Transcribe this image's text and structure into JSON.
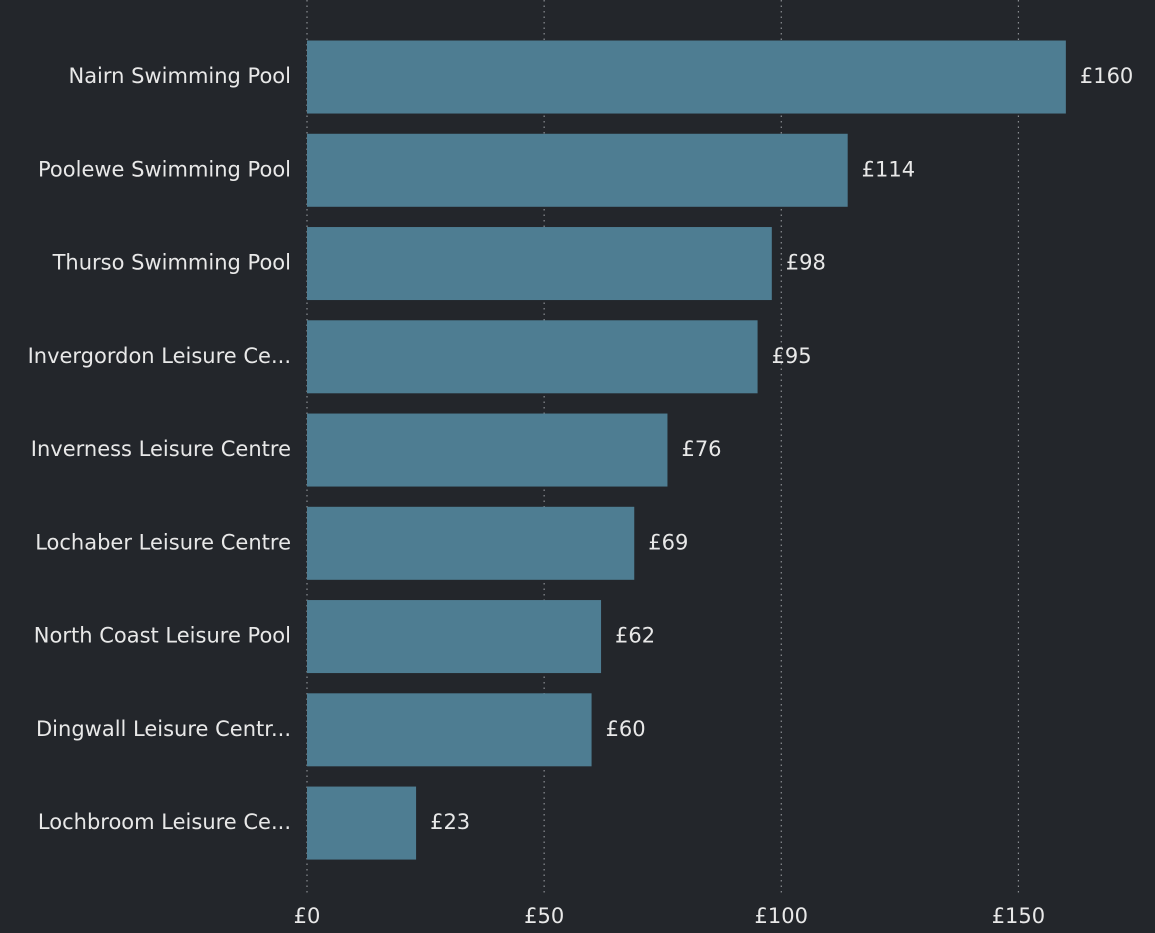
{
  "chart_data": {
    "type": "bar",
    "orientation": "horizontal",
    "categories": [
      "Nairn Swimming Pool",
      "Poolewe Swimming Pool",
      "Thurso Swimming Pool",
      "Invergordon Leisure Ce...",
      "Inverness Leisure Centre",
      "Lochaber Leisure Centre",
      "North Coast Leisure Pool",
      "Dingwall Leisure Centr...",
      "Lochbroom Leisure Ce..."
    ],
    "values": [
      160,
      114,
      98,
      95,
      76,
      69,
      62,
      60,
      23
    ],
    "value_labels": [
      "£160",
      "£114",
      "£98",
      "£95",
      "£76",
      "£69",
      "£62",
      "£60",
      "£23"
    ],
    "color": "#4e7d92",
    "xlim": [
      0,
      175
    ],
    "xticks": [
      {
        "value": 0,
        "label": "£0"
      },
      {
        "value": 50,
        "label": "£50"
      },
      {
        "value": 100,
        "label": "£100"
      },
      {
        "value": 150,
        "label": "£150"
      }
    ],
    "grid": true
  }
}
